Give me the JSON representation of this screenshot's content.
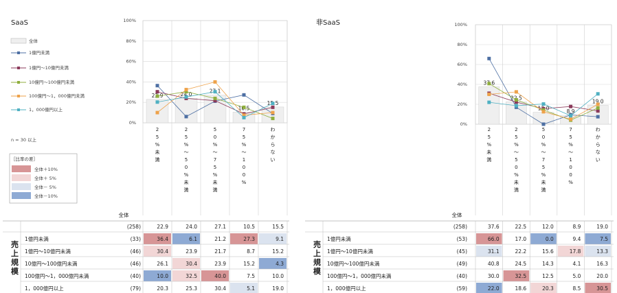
{
  "legend": {
    "all_label": "全体",
    "series_labels": [
      "1億円未満",
      "1億円～10億円未満",
      "10億円～100億円未満",
      "100億円～1，000億円未満",
      "1，000億円以上"
    ],
    "note": "n = 30 以上",
    "diff_title": "［比率の差］",
    "diff_labels": [
      "全体＋10%",
      "全体＋ 5%",
      "全体－ 5%",
      "全体－10%"
    ],
    "diff_colors": [
      "#d79596",
      "#f2d6d6",
      "#dbe3ef",
      "#8eaad4"
    ]
  },
  "colors": {
    "bar": "#efefef",
    "series": [
      "#4d6fa3",
      "#8b3a5a",
      "#8fae3d",
      "#eea24a",
      "#4fb0c2"
    ]
  },
  "table": {
    "header_total": "全体",
    "side_label": "売上規模"
  },
  "chart_data": [
    {
      "type": "bar",
      "title": "SaaS",
      "categories": [
        "25%未満",
        "25%～50%未満",
        "50%～75%未満",
        "75%～100%",
        "わからない"
      ],
      "yticks": [
        "0%",
        "20%",
        "40%",
        "60%",
        "80%",
        "100%"
      ],
      "ylim": [
        0,
        100
      ],
      "total": {
        "n": "(258)",
        "values": [
          22.9,
          24.0,
          27.1,
          10.5,
          15.5
        ]
      },
      "series": [
        {
          "name": "1億円未満",
          "n": "(33)",
          "values": [
            36.4,
            6.1,
            21.2,
            27.3,
            9.1
          ],
          "diff": [
            2,
            -2,
            0,
            2,
            -1
          ]
        },
        {
          "name": "1億円～10億円未満",
          "n": "(46)",
          "values": [
            30.4,
            23.9,
            21.7,
            8.7,
            15.2
          ],
          "diff": [
            1,
            0,
            0,
            0,
            0
          ]
        },
        {
          "name": "10億円～100億円未満",
          "n": "(46)",
          "values": [
            26.1,
            30.4,
            23.9,
            15.2,
            4.3
          ],
          "diff": [
            0,
            1,
            0,
            0,
            -2
          ]
        },
        {
          "name": "100億円～1，000億円未満",
          "n": "(40)",
          "values": [
            10.0,
            32.5,
            40.0,
            7.5,
            10.0
          ],
          "diff": [
            -2,
            1,
            2,
            0,
            0
          ]
        },
        {
          "name": "1，000億円以上",
          "n": "(79)",
          "values": [
            20.3,
            25.3,
            30.4,
            5.1,
            19.0
          ],
          "diff": [
            0,
            0,
            0,
            -1,
            0
          ]
        }
      ]
    },
    {
      "type": "bar",
      "title": "非SaaS",
      "categories": [
        "25%未満",
        "25%～50%未満",
        "50%～75%未満",
        "75%～100%",
        "わからない"
      ],
      "yticks": [
        "0%",
        "20%",
        "40%",
        "60%",
        "80%",
        "100%"
      ],
      "ylim": [
        0,
        100
      ],
      "total": {
        "n": "(258)",
        "values": [
          37.6,
          22.5,
          12.0,
          8.9,
          19.0
        ]
      },
      "series": [
        {
          "name": "1億円未満",
          "n": "(53)",
          "values": [
            66.0,
            17.0,
            0.0,
            9.4,
            7.5
          ],
          "diff": [
            2,
            0,
            -2,
            0,
            -2
          ]
        },
        {
          "name": "1億円～10億円未満",
          "n": "(45)",
          "values": [
            31.1,
            22.2,
            15.6,
            17.8,
            13.3
          ],
          "diff": [
            -1,
            0,
            0,
            1,
            -1
          ]
        },
        {
          "name": "10億円～100億円未満",
          "n": "(49)",
          "values": [
            40.8,
            24.5,
            14.3,
            4.1,
            16.3
          ],
          "diff": [
            0,
            0,
            0,
            0,
            0
          ]
        },
        {
          "name": "100億円～1，000億円未満",
          "n": "(40)",
          "values": [
            30.0,
            32.5,
            12.5,
            5.0,
            20.0
          ],
          "diff": [
            0,
            2,
            0,
            0,
            0
          ]
        },
        {
          "name": "1，000億円以上",
          "n": "(59)",
          "values": [
            22.0,
            18.6,
            20.3,
            8.5,
            30.5
          ],
          "diff": [
            -2,
            0,
            1,
            0,
            2
          ]
        }
      ]
    }
  ]
}
